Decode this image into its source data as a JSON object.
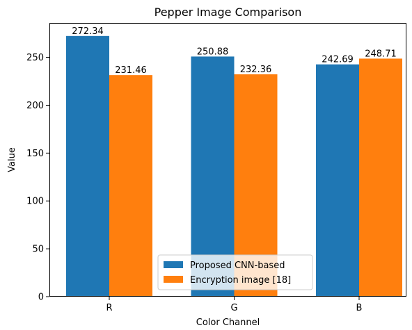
{
  "chart_data": {
    "type": "bar",
    "title": "Pepper Image Comparison",
    "xlabel": "Color Channel",
    "ylabel": "Value",
    "categories": [
      "R",
      "G",
      "B"
    ],
    "ylim": [
      0,
      286
    ],
    "yticks": [
      0,
      50,
      100,
      150,
      200,
      250
    ],
    "series": [
      {
        "name": "Proposed CNN-based",
        "values": [
          272.34,
          250.88,
          242.69
        ],
        "labels": [
          "272.34",
          "250.88",
          "242.69"
        ],
        "color": "#1f77b4"
      },
      {
        "name": "Encryption image [18]",
        "values": [
          231.46,
          232.36,
          248.71
        ],
        "labels": [
          "231.46",
          "232.36",
          "248.71"
        ],
        "color": "#ff7f0e"
      }
    ],
    "legend_position": "lower center",
    "grid": false
  }
}
